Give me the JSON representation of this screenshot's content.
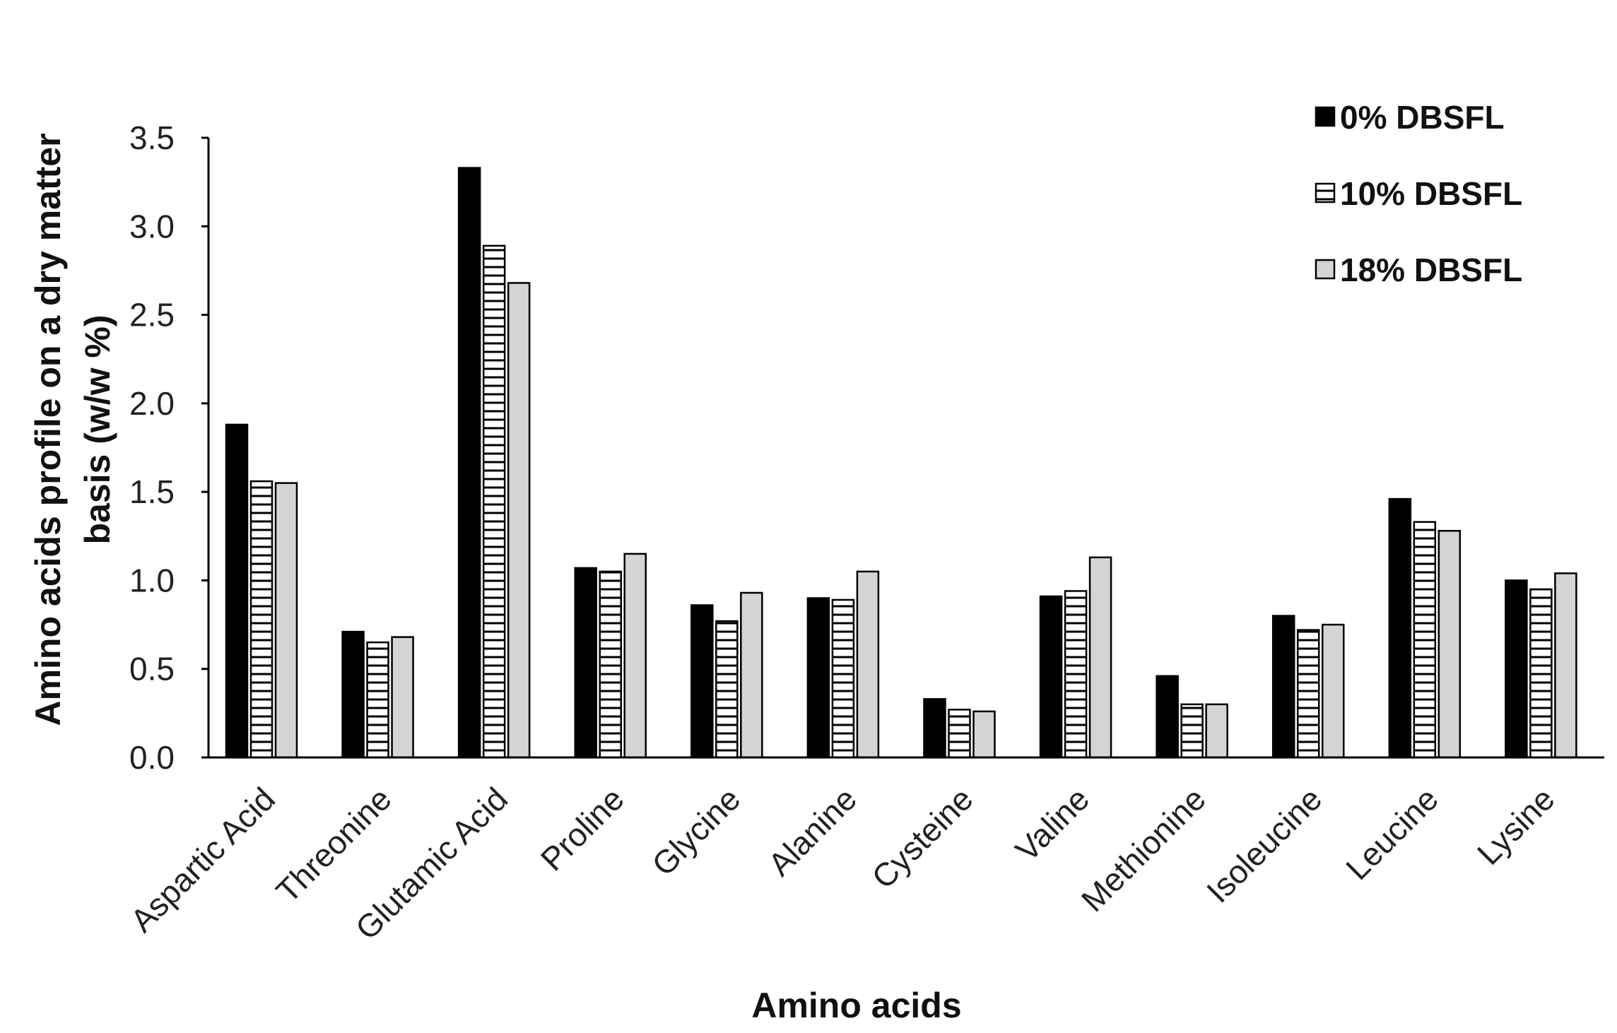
{
  "chart_data": {
    "type": "bar",
    "title": "",
    "xlabel": "Amino acids",
    "ylabel_lines": [
      "Amino acids profile on a dry matter",
      "basis (w/w %)"
    ],
    "ylim": [
      0,
      3.5
    ],
    "yticks": [
      "0.0",
      "0.5",
      "1.0",
      "1.5",
      "2.0",
      "2.5",
      "3.0",
      "3.5"
    ],
    "ytick_values": [
      0,
      0.5,
      1.0,
      1.5,
      2.0,
      2.5,
      3.0,
      3.5
    ],
    "grid": false,
    "legend_position": "top-right",
    "categories": [
      "Aspartic Acid",
      "Threonine",
      "Glutamic Acid",
      "Proline",
      "Glycine",
      "Alanine",
      "Cysteine",
      "Valine",
      "Methionine",
      "Isoleucine",
      "Leucine",
      "Lysine"
    ],
    "series": [
      {
        "name": "0% DBSFL",
        "style": "solid",
        "color": "#000000",
        "values": [
          1.88,
          0.71,
          3.33,
          1.07,
          0.86,
          0.9,
          0.33,
          0.91,
          0.46,
          0.8,
          1.46,
          1.0
        ]
      },
      {
        "name": "10% DBSFL",
        "style": "hatch",
        "color": "#ffffff",
        "values": [
          1.56,
          0.65,
          2.89,
          1.05,
          0.77,
          0.89,
          0.27,
          0.94,
          0.3,
          0.72,
          1.33,
          0.95
        ]
      },
      {
        "name": "18% DBSFL",
        "style": "light",
        "color": "#d4d4d4",
        "values": [
          1.55,
          0.68,
          2.68,
          1.15,
          0.93,
          1.05,
          0.26,
          1.13,
          0.3,
          0.75,
          1.28,
          1.04
        ]
      }
    ]
  }
}
